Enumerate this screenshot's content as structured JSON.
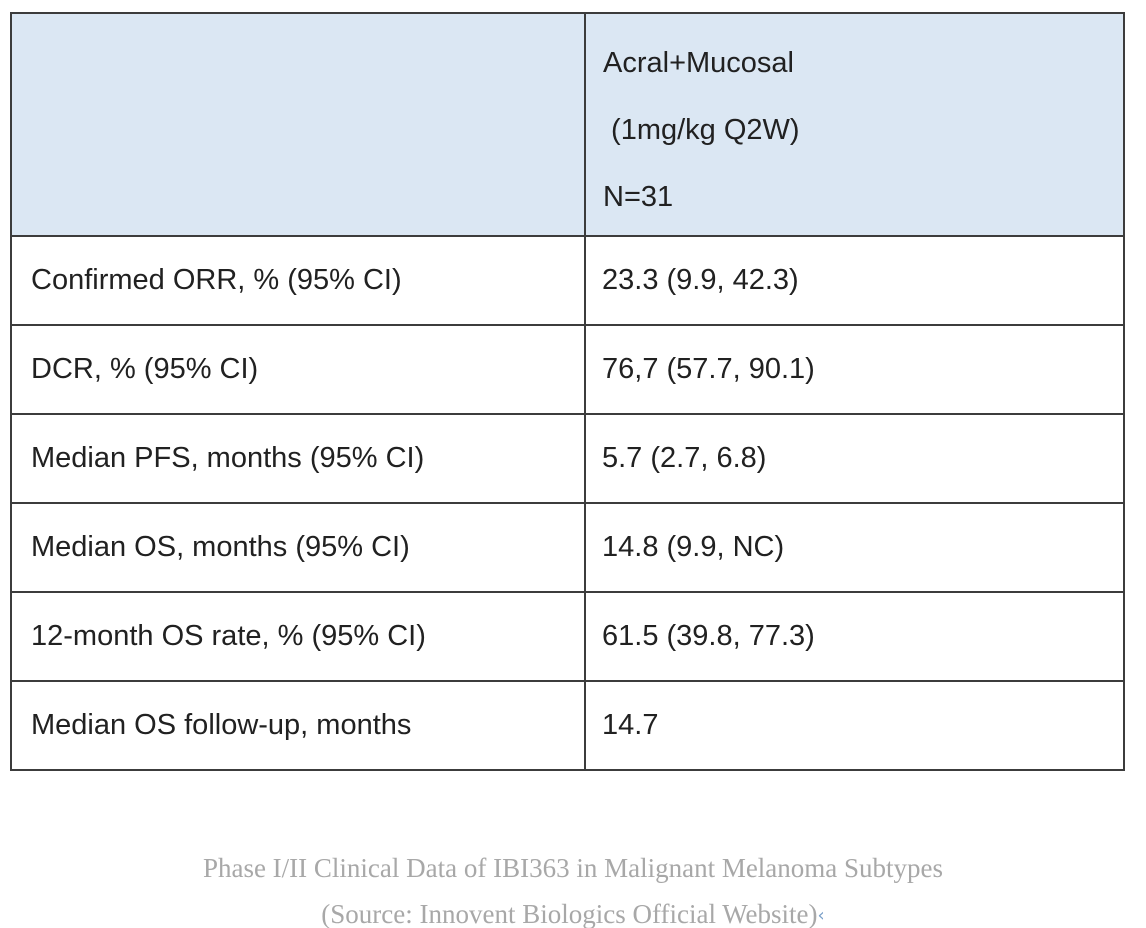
{
  "table": {
    "column_header": {
      "col1": "",
      "line1": "Acral+Mucosal",
      "line2": " (1mg/kg Q2W)",
      "line3": "N=31"
    },
    "rows": [
      {
        "label": "Confirmed ORR, % (95% CI)",
        "value": "23.3 (9.9, 42.3)"
      },
      {
        "label": "DCR, % (95% CI)",
        "value": "76,7 (57.7, 90.1)"
      },
      {
        "label": "Median PFS, months (95% CI)",
        "value": "5.7 (2.7, 6.8)"
      },
      {
        "label": "Median OS, months (95% CI)",
        "value": "14.8 (9.9, NC)"
      },
      {
        "label": "12-month OS rate, % (95% CI)",
        "value": "61.5 (39.8, 77.3)"
      },
      {
        "label": "Median OS follow-up, months",
        "value": "14.7"
      }
    ]
  },
  "caption": {
    "line1": "Phase I/II Clinical Data of IBI363 in Malignant Melanoma Subtypes",
    "line2": "(Source: Innovent Biologics Official Website)",
    "end_mark": "‹"
  },
  "colors": {
    "header_bg": "#dbe7f3",
    "border": "#3c3c3c",
    "table_text": "#212121",
    "caption_text": "#a8a8a8",
    "end_mark": "#7ba0c9"
  }
}
